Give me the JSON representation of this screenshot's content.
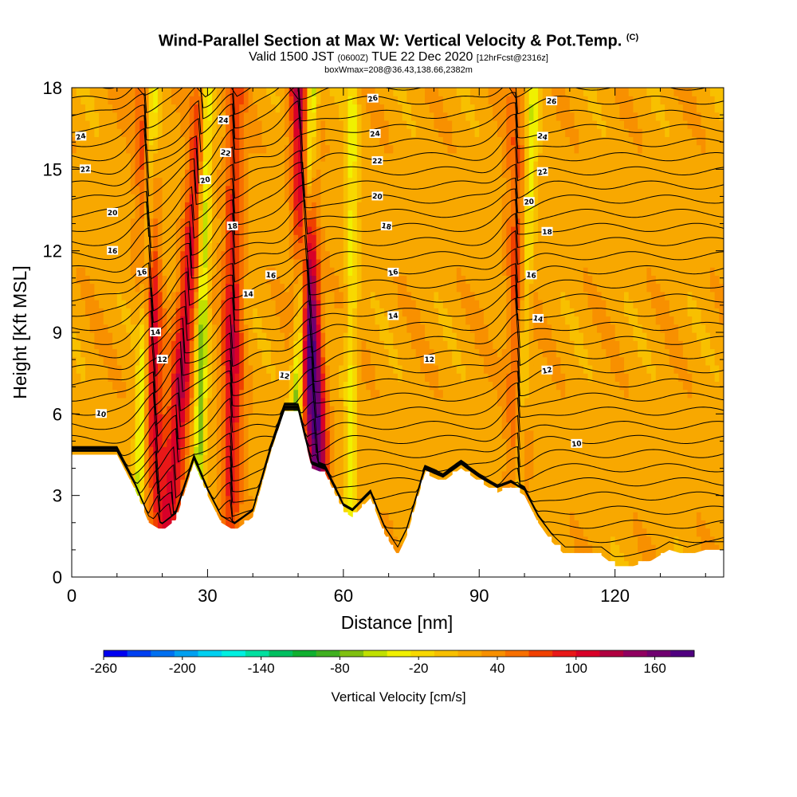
{
  "header": {
    "title": "Wind-Parallel Section at Max W: Vertical Velocity & Pot.Temp.",
    "copyright": "(C)",
    "valid_prefix": "Valid 1500 JST",
    "valid_z": "(0600Z)",
    "valid_date": "TUE 22 Dec 2020",
    "forecast": "[12hrFcst@2316z]",
    "box_info": "boxWmax=208@36.43,138.66,2382m"
  },
  "chart_data": {
    "type": "heatmap",
    "xlabel": "Distance [nm]",
    "ylabel": "Height [Kft MSL]",
    "xlim": [
      0,
      144
    ],
    "ylim": [
      0,
      18
    ],
    "x_ticks": [
      0,
      30,
      60,
      90,
      120
    ],
    "y_ticks": [
      0,
      3,
      6,
      9,
      12,
      15,
      18
    ],
    "colorbar": {
      "label": "Vertical Velocity [cm/s]",
      "tick_labels": [
        "-260",
        "-200",
        "-140",
        "-80",
        "-20",
        "40",
        "100",
        "160"
      ],
      "tick_values": [
        -260,
        -200,
        -140,
        -80,
        -20,
        40,
        100,
        160
      ],
      "range": [
        -260,
        190
      ],
      "colors": [
        "#0000f0",
        "#0040f0",
        "#0070f0",
        "#00a0f0",
        "#00d0f0",
        "#00f0e0",
        "#00e0a0",
        "#00c060",
        "#10b030",
        "#40b020",
        "#80c010",
        "#c0e000",
        "#f0f000",
        "#f8d800",
        "#f8c000",
        "#f8a800",
        "#f89000",
        "#f87000",
        "#f04000",
        "#e81818",
        "#d80028",
        "#b00040",
        "#900060",
        "#700070",
        "#500080"
      ]
    },
    "velocity_fields": {
      "background_cm_s": 20,
      "updraft_bands": [
        {
          "x_top": 16,
          "x_bottom": 19.5,
          "w": 90
        },
        {
          "x_top": 29,
          "x_bottom": 21,
          "w": 100
        },
        {
          "x_top": 50,
          "x_bottom": 55.5,
          "w": 175
        },
        {
          "x_top": 36,
          "x_bottom": 35,
          "w": 90
        },
        {
          "x_top": 98,
          "x_bottom": 99,
          "w": 60
        }
      ],
      "downdraft_bands": [
        {
          "x_top": 18,
          "x_bottom": 14,
          "w": -70
        },
        {
          "x_top": 30,
          "x_bottom": 27.5,
          "w": -90
        },
        {
          "x_top": 53,
          "x_bottom": 48,
          "w": -100
        },
        {
          "x_top": 102,
          "x_bottom": 98,
          "w": -60
        },
        {
          "x_top": 62,
          "x_bottom": 61.5,
          "w": -50
        }
      ]
    },
    "terrain_kft": {
      "x": [
        0,
        8,
        10,
        14,
        17,
        20,
        23,
        27,
        30,
        33,
        36,
        40,
        44,
        47,
        50,
        53,
        56,
        60,
        62,
        66,
        69,
        72,
        74,
        78,
        82,
        86,
        90,
        94,
        97,
        100,
        103,
        106,
        109,
        113,
        117,
        120,
        124,
        128,
        132,
        136,
        140,
        144
      ],
      "y": [
        4.5,
        4.5,
        4.5,
        3.2,
        2.0,
        1.7,
        2.1,
        4.2,
        3.0,
        2.0,
        1.7,
        2.2,
        4.6,
        6.1,
        6.1,
        4.0,
        3.8,
        2.4,
        2.2,
        2.9,
        1.6,
        0.8,
        1.5,
        3.8,
        3.5,
        4.0,
        3.5,
        3.1,
        3.3,
        3.0,
        2.0,
        1.3,
        0.8,
        0.8,
        0.8,
        0.4,
        0.4,
        0.6,
        1.0,
        0.8,
        1.0,
        1.0
      ]
    },
    "isentrope_labels": [
      {
        "x": 2,
        "y": 16.2,
        "text": "24"
      },
      {
        "x": 3,
        "y": 15.0,
        "text": "22"
      },
      {
        "x": 9,
        "y": 13.4,
        "text": "20"
      },
      {
        "x": 9,
        "y": 12.0,
        "text": "16"
      },
      {
        "x": 6.5,
        "y": 6.0,
        "text": "10"
      },
      {
        "x": 15.5,
        "y": 11.2,
        "text": "16"
      },
      {
        "x": 18.5,
        "y": 9.0,
        "text": "14"
      },
      {
        "x": 20,
        "y": 8.0,
        "text": "12"
      },
      {
        "x": 33.5,
        "y": 16.8,
        "text": "24"
      },
      {
        "x": 34,
        "y": 15.6,
        "text": "22"
      },
      {
        "x": 29.5,
        "y": 14.6,
        "text": "20"
      },
      {
        "x": 35.5,
        "y": 12.9,
        "text": "18"
      },
      {
        "x": 39,
        "y": 10.4,
        "text": "14"
      },
      {
        "x": 44,
        "y": 11.1,
        "text": "16"
      },
      {
        "x": 47,
        "y": 7.4,
        "text": "12"
      },
      {
        "x": 66.5,
        "y": 17.6,
        "text": "26"
      },
      {
        "x": 67,
        "y": 16.3,
        "text": "24"
      },
      {
        "x": 67.5,
        "y": 15.3,
        "text": "22"
      },
      {
        "x": 67.5,
        "y": 14.0,
        "text": "20"
      },
      {
        "x": 69.5,
        "y": 12.9,
        "text": "18"
      },
      {
        "x": 71,
        "y": 11.2,
        "text": "16"
      },
      {
        "x": 71,
        "y": 9.6,
        "text": "14"
      },
      {
        "x": 79,
        "y": 8.0,
        "text": "12"
      },
      {
        "x": 106,
        "y": 17.5,
        "text": "26"
      },
      {
        "x": 104,
        "y": 16.2,
        "text": "24"
      },
      {
        "x": 104,
        "y": 14.9,
        "text": "22"
      },
      {
        "x": 101,
        "y": 13.8,
        "text": "20"
      },
      {
        "x": 105,
        "y": 12.7,
        "text": "18"
      },
      {
        "x": 101.5,
        "y": 11.1,
        "text": "16"
      },
      {
        "x": 103,
        "y": 9.5,
        "text": "14"
      },
      {
        "x": 105,
        "y": 7.6,
        "text": "12"
      },
      {
        "x": 111.5,
        "y": 4.9,
        "text": "10"
      }
    ]
  }
}
